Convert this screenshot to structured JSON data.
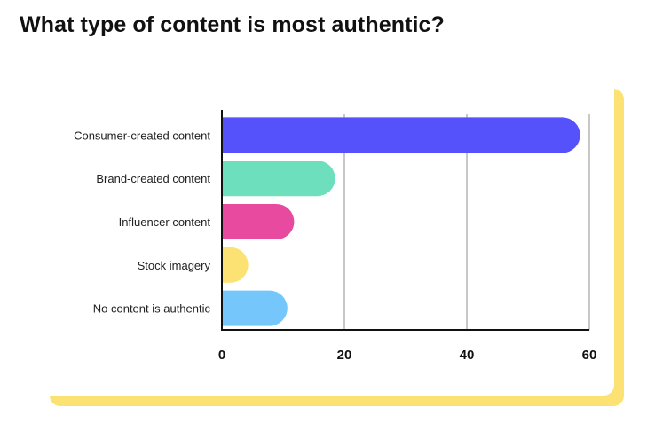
{
  "title": "What type of content is most authentic?",
  "colors": {
    "accent_frame": "#fbe272",
    "axis": "#111111",
    "grid": "#b5b5b5"
  },
  "chart_data": {
    "type": "bar",
    "orientation": "horizontal",
    "title": "What type of content is most authentic?",
    "categories": [
      "Consumer-created content",
      "Brand-created content",
      "Influencer content",
      "Stock imagery",
      "No content is authentic"
    ],
    "values": [
      58.5,
      18.5,
      11.8,
      4.3,
      10.7
    ],
    "bar_colors": [
      "#5551fb",
      "#6ddfbc",
      "#e84a9f",
      "#fbe272",
      "#75c7fb"
    ],
    "xlim": [
      0,
      60
    ],
    "xticks": [
      0,
      20,
      40,
      60
    ],
    "xlabel": "",
    "ylabel": "",
    "grid": "vertical",
    "legend": "none"
  }
}
